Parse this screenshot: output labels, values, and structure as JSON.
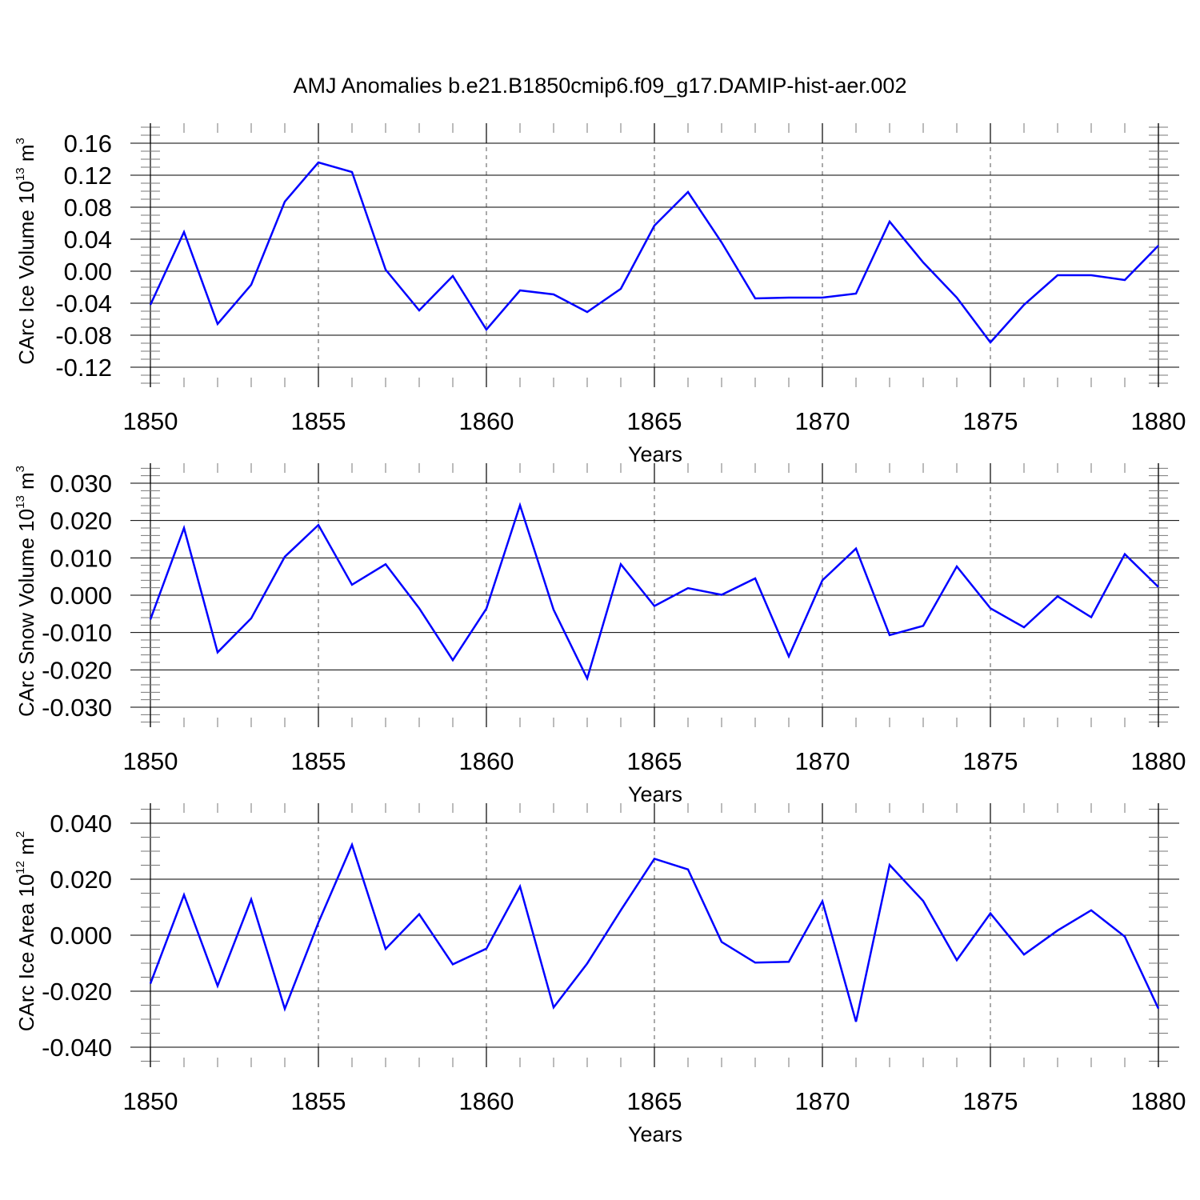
{
  "title": "AMJ Anomalies b.e21.B1850cmip6.f09_g17.DAMIP-hist-aer.002",
  "line_color": "#0000ff",
  "chart_data": [
    {
      "type": "line",
      "ylabel_main": "CArc Ice Volume 10",
      "ylabel_exp": "13",
      "ylabel_unit": "m",
      "ylabel_unit_exp": "3",
      "xlabel": "Years",
      "xlim": [
        1850,
        1880
      ],
      "ylim": [
        -0.13,
        0.16
      ],
      "xticks": [
        "1850",
        "1855",
        "1860",
        "1865",
        "1870",
        "1875",
        "1880"
      ],
      "yticks": [
        "0.16",
        "0.12",
        "0.08",
        "0.04",
        "0.00",
        "-0.04",
        "-0.08",
        "-0.12"
      ],
      "grid": "dashed vertical lines at labeled years",
      "series": [
        {
          "x": [
            1850,
            1851,
            1852,
            1853,
            1854,
            1855,
            1856,
            1857,
            1858,
            1859,
            1860,
            1861,
            1862,
            1863,
            1864,
            1865,
            1866,
            1867,
            1868,
            1869,
            1870,
            1871,
            1872,
            1873,
            1874,
            1875,
            1876,
            1877,
            1878,
            1879,
            1880
          ],
          "y": [
            -0.042,
            0.049,
            -0.066,
            -0.017,
            0.087,
            0.136,
            0.124,
            0.002,
            -0.049,
            -0.006,
            -0.073,
            -0.024,
            -0.029,
            -0.051,
            -0.022,
            0.057,
            0.099,
            0.036,
            -0.034,
            -0.033,
            -0.033,
            -0.028,
            0.062,
            0.011,
            -0.033,
            -0.089,
            -0.042,
            -0.005,
            -0.005,
            -0.011,
            0.032
          ]
        }
      ]
    },
    {
      "type": "line",
      "ylabel_main": "CArc Snow Volume 10",
      "ylabel_exp": "13",
      "ylabel_unit": "m",
      "ylabel_unit_exp": "3",
      "xlabel": "Years",
      "xlim": [
        1850,
        1880
      ],
      "ylim": [
        -0.03,
        0.03
      ],
      "xticks": [
        "1850",
        "1855",
        "1860",
        "1865",
        "1870",
        "1875",
        "1880"
      ],
      "yticks": [
        "0.030",
        "0.020",
        "0.010",
        "0.000",
        "-0.010",
        "-0.020",
        "-0.030"
      ],
      "grid": "dashed vertical lines at labeled years",
      "series": [
        {
          "x": [
            1850,
            1851,
            1852,
            1853,
            1854,
            1855,
            1856,
            1857,
            1858,
            1859,
            1860,
            1861,
            1862,
            1863,
            1864,
            1865,
            1866,
            1867,
            1868,
            1869,
            1870,
            1871,
            1872,
            1873,
            1874,
            1875,
            1876,
            1877,
            1878,
            1879,
            1880
          ],
          "y": [
            -0.0065,
            0.018,
            -0.0153,
            -0.0062,
            0.0103,
            0.0188,
            0.0028,
            0.0083,
            -0.0035,
            -0.0174,
            -0.0036,
            0.0241,
            -0.0039,
            -0.0223,
            0.0083,
            -0.0029,
            0.0019,
            0.0001,
            0.0045,
            -0.0164,
            0.004,
            0.0125,
            -0.0107,
            -0.0082,
            0.0077,
            -0.0035,
            -0.0086,
            -0.0003,
            -0.0059,
            0.011,
            0.0022
          ]
        }
      ]
    },
    {
      "type": "line",
      "ylabel_main": "CArc Ice Area 10",
      "ylabel_exp": "12",
      "ylabel_unit": "m",
      "ylabel_unit_exp": "2",
      "xlabel": "Years",
      "xlim": [
        1850,
        1880
      ],
      "ylim": [
        -0.04,
        0.04
      ],
      "xticks": [
        "1850",
        "1855",
        "1860",
        "1865",
        "1870",
        "1875",
        "1880"
      ],
      "yticks": [
        "0.040",
        "0.020",
        "0.000",
        "-0.020",
        "-0.040"
      ],
      "grid": "dashed vertical lines at labeled years",
      "series": [
        {
          "x": [
            1850,
            1851,
            1852,
            1853,
            1854,
            1855,
            1856,
            1857,
            1858,
            1859,
            1860,
            1861,
            1862,
            1863,
            1864,
            1865,
            1866,
            1867,
            1868,
            1869,
            1870,
            1871,
            1872,
            1873,
            1874,
            1875,
            1876,
            1877,
            1878,
            1879,
            1880
          ],
          "y": [
            -0.0173,
            0.0144,
            -0.0181,
            0.0128,
            -0.0263,
            0.0045,
            0.0323,
            -0.0049,
            0.0075,
            -0.0104,
            -0.0048,
            0.0174,
            -0.0258,
            -0.0101,
            0.0089,
            0.0273,
            0.0235,
            -0.0024,
            -0.0098,
            -0.0095,
            0.0121,
            -0.0309,
            0.0251,
            0.0122,
            -0.0089,
            0.0078,
            -0.0069,
            0.0017,
            0.0089,
            -0.0005,
            -0.0262
          ]
        }
      ]
    }
  ]
}
